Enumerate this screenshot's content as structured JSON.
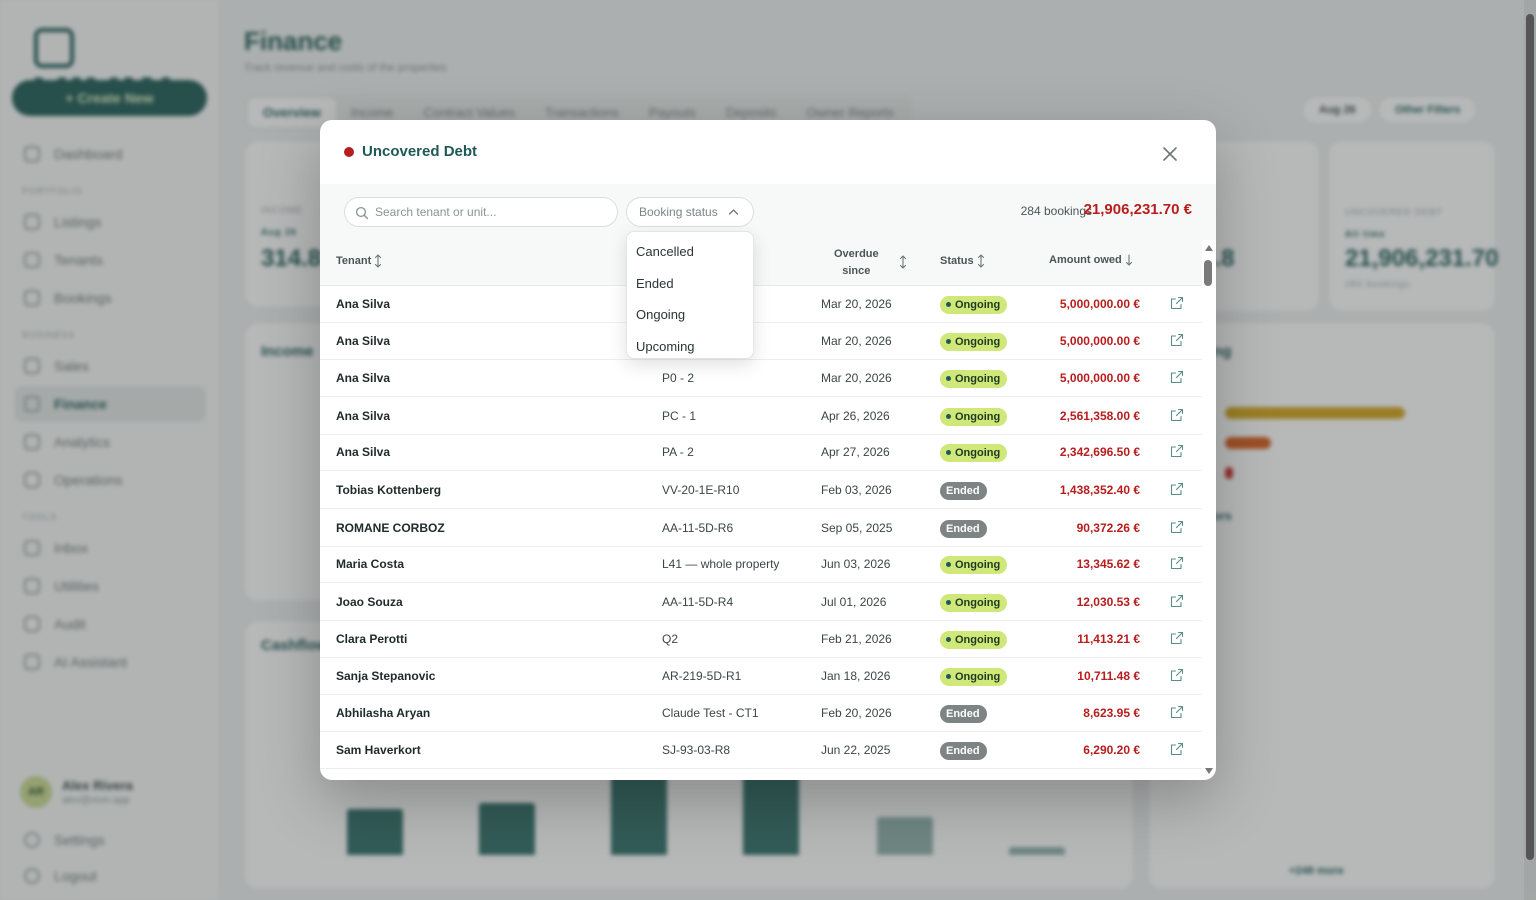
{
  "app": {
    "logo_text": "VIVIN",
    "create_new": "+ Create New",
    "nav_sections": {
      "portfolio": "PORTFOLIO",
      "business": "BUSINESS",
      "tools": "TOOLS"
    },
    "nav_items": [
      "Dashboard",
      "Listings",
      "Tenants",
      "Bookings",
      "Sales",
      "Finance",
      "Analytics",
      "Operations",
      "Inbox",
      "Utilities",
      "Audit",
      "AI Assistant"
    ],
    "user": {
      "initials": "AR",
      "name": "Alex Rivera",
      "email": "alex@vivin.app"
    },
    "footer_items": [
      "Settings",
      "Logout"
    ]
  },
  "page": {
    "title": "Finance",
    "subtitle": "Track revenue and costs of the properties",
    "tabs": [
      "Overview",
      "Income",
      "Contract Values",
      "Transactions",
      "Payouts",
      "Deposits",
      "Owner Reports"
    ],
    "period_button": "Aug 26",
    "filters_button": "Other Filters",
    "kpi_income_label": "INCOME",
    "kpi_income_period": "Aug 26",
    "kpi_income_value": "314.8",
    "kpi_outstanding_value": "02,645.8",
    "kpi_uncovered_label": "UNCOVERED DEBT",
    "kpi_uncovered_badge": "All time",
    "kpi_uncovered_value": "21,906,231.70",
    "kpi_uncovered_sub": "284 bookings",
    "income_title": "Income",
    "cashflow_title": "Cashflow",
    "aging_title": "ing",
    "top_debtors_title": "tors",
    "more_link": "+248 more"
  },
  "modal": {
    "title": "Uncovered Debt",
    "search_placeholder": "Search tenant or unit...",
    "status_filter_label": "Booking status",
    "status_options": [
      "Cancelled",
      "Ended",
      "Ongoing",
      "Upcoming"
    ],
    "bookings_count": "284 bookings",
    "total_amount": "21,906,231.70 €",
    "columns": {
      "tenant": "Tenant",
      "overdue_line1": "Overdue",
      "overdue_line2": "since",
      "status": "Status",
      "amount": "Amount owed"
    },
    "rows": [
      {
        "tenant": "Ana Silva",
        "unit": "",
        "since": "Mar 20, 2026",
        "status": "Ongoing",
        "amount": "5,000,000.00 €"
      },
      {
        "tenant": "Ana Silva",
        "unit": "",
        "since": "Mar 20, 2026",
        "status": "Ongoing",
        "amount": "5,000,000.00 €"
      },
      {
        "tenant": "Ana Silva",
        "unit": "P0 - 2",
        "since": "Mar 20, 2026",
        "status": "Ongoing",
        "amount": "5,000,000.00 €"
      },
      {
        "tenant": "Ana Silva",
        "unit": "PC - 1",
        "since": "Apr 26, 2026",
        "status": "Ongoing",
        "amount": "2,561,358.00 €"
      },
      {
        "tenant": "Ana Silva",
        "unit": "PA - 2",
        "since": "Apr 27, 2026",
        "status": "Ongoing",
        "amount": "2,342,696.50 €"
      },
      {
        "tenant": "Tobias Kottenberg",
        "unit": "VV-20-1E-R10",
        "since": "Feb 03, 2026",
        "status": "Ended",
        "amount": "1,438,352.40 €"
      },
      {
        "tenant": "ROMANE CORBOZ",
        "unit": "AA-11-5D-R6",
        "since": "Sep 05, 2025",
        "status": "Ended",
        "amount": "90,372.26 €"
      },
      {
        "tenant": "Maria Costa",
        "unit": "L41 — whole property",
        "since": "Jun 03, 2026",
        "status": "Ongoing",
        "amount": "13,345.62 €"
      },
      {
        "tenant": "Joao Souza",
        "unit": "AA-11-5D-R4",
        "since": "Jul 01, 2026",
        "status": "Ongoing",
        "amount": "12,030.53 €"
      },
      {
        "tenant": "Clara Perotti",
        "unit": "Q2",
        "since": "Feb 21, 2026",
        "status": "Ongoing",
        "amount": "11,413.21 €"
      },
      {
        "tenant": "Sanja Stepanovic",
        "unit": "AR-219-5D-R1",
        "since": "Jan 18, 2026",
        "status": "Ongoing",
        "amount": "10,711.48 €"
      },
      {
        "tenant": "Abhilasha Aryan",
        "unit": "Claude Test - CT1",
        "since": "Feb 20, 2026",
        "status": "Ended",
        "amount": "8,623.95 €"
      },
      {
        "tenant": "Sam Haverkort",
        "unit": "SJ-93-03-R8",
        "since": "Jun 22, 2025",
        "status": "Ended",
        "amount": "6,290.20 €"
      }
    ]
  },
  "colors": {
    "brand": "#1e5a55",
    "debt_red": "#b81d1d",
    "ongoing_badge": "#cfe879",
    "ended_badge": "#7d8483"
  },
  "icons": {
    "search": "search-icon",
    "close": "close-icon",
    "sort": "sort-icon",
    "open": "external-link-icon",
    "chevron": "chevron-up-icon"
  }
}
